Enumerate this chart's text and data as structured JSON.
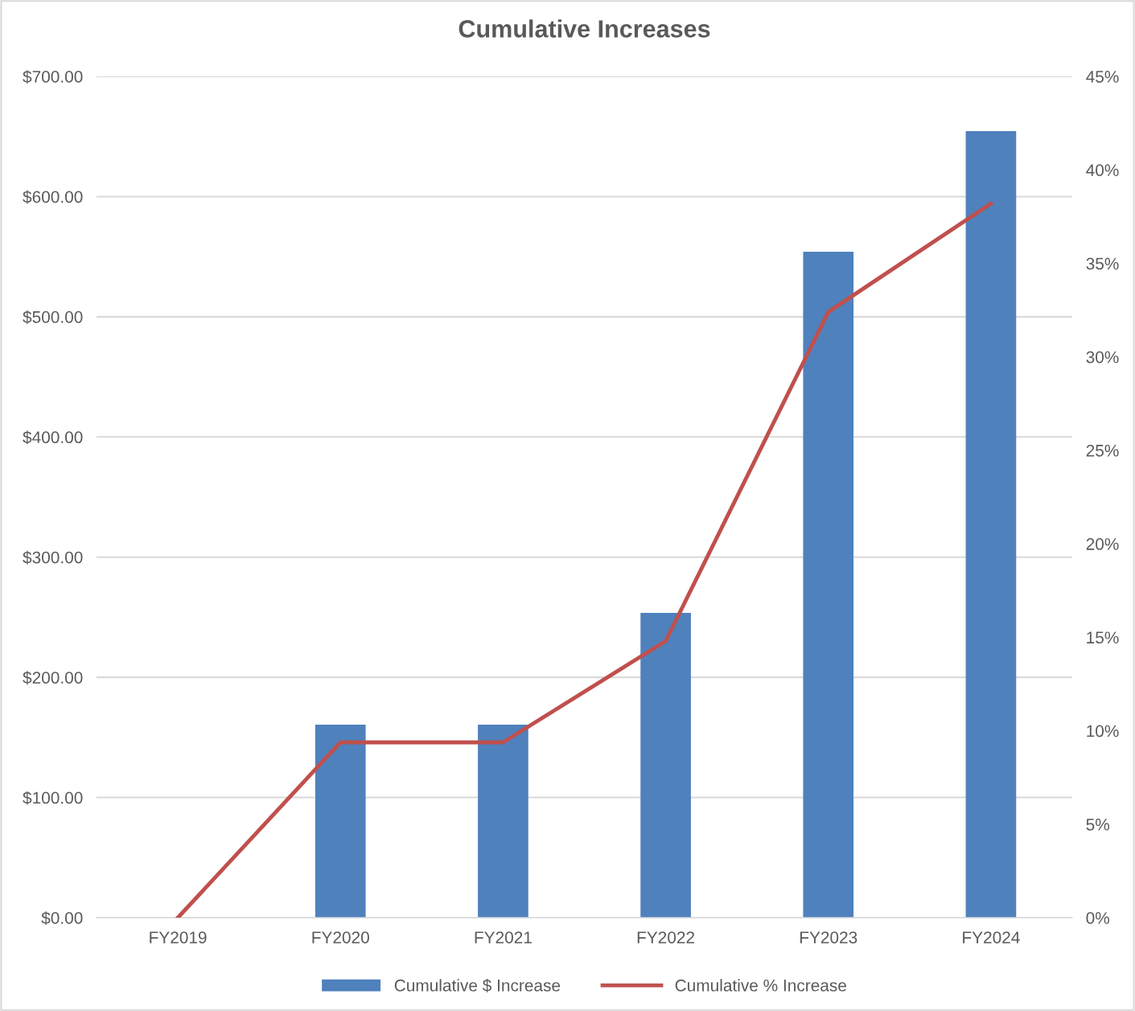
{
  "chart_data": {
    "type": "bar",
    "title": "Cumulative Increases",
    "categories": [
      "FY2019",
      "FY2020",
      "FY2021",
      "FY2022",
      "FY2023",
      "FY2024"
    ],
    "series": [
      {
        "name": "Cumulative $ Increase",
        "color": "#4f81bd",
        "values": [
          0,
          160.6,
          160.6,
          253.6,
          554.1,
          654.5
        ]
      },
      {
        "name": "Cumulative % Increase",
        "type": "line",
        "axis": "y2",
        "color": "#c0504d",
        "values": [
          0,
          9.38,
          9.38,
          14.8,
          32.4,
          38.2
        ]
      }
    ],
    "ylim": [
      0,
      700
    ],
    "yticks": [
      {
        "value": 0,
        "label": "$0.00"
      },
      {
        "value": 100,
        "label": "$100.00"
      },
      {
        "value": 200,
        "label": "$200.00"
      },
      {
        "value": 300,
        "label": "$300.00"
      },
      {
        "value": 400,
        "label": "$400.00"
      },
      {
        "value": 500,
        "label": "$500.00"
      },
      {
        "value": 600,
        "label": "$600.00"
      },
      {
        "value": 700,
        "label": "$700.00"
      }
    ],
    "y2lim": [
      0,
      45
    ],
    "y2ticks": [
      {
        "value": 0,
        "label": "0%"
      },
      {
        "value": 5,
        "label": "5%"
      },
      {
        "value": 10,
        "label": "10%"
      },
      {
        "value": 15,
        "label": "15%"
      },
      {
        "value": 20,
        "label": "20%"
      },
      {
        "value": 25,
        "label": "25%"
      },
      {
        "value": 30,
        "label": "30%"
      },
      {
        "value": 35,
        "label": "35%"
      },
      {
        "value": 40,
        "label": "40%"
      },
      {
        "value": 45,
        "label": "45%"
      }
    ],
    "grid": "y",
    "legend": "bottom"
  }
}
